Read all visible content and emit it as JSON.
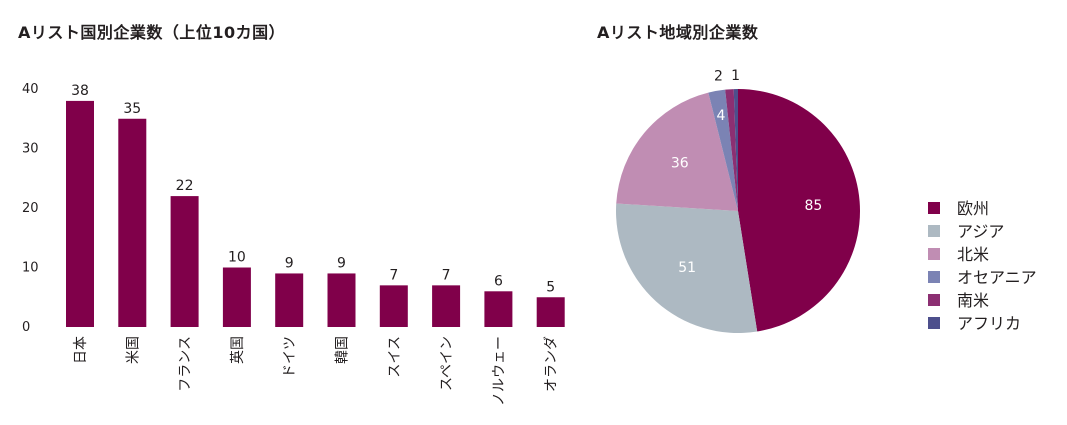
{
  "chart_data": [
    {
      "type": "bar",
      "title": "Aリスト国別企業数（上位10カ国）",
      "categories": [
        "日本",
        "米国",
        "フランス",
        "英国",
        "ドイツ",
        "韓国",
        "スイス",
        "スペイン",
        "ノルウェー",
        "オランダ"
      ],
      "values": [
        38,
        35,
        22,
        10,
        9,
        9,
        7,
        7,
        6,
        5
      ],
      "ylim": [
        0,
        40
      ],
      "yticks": [
        0,
        10,
        20,
        30,
        40
      ],
      "grid": false,
      "colors": {
        "bar": "#80004a"
      }
    },
    {
      "type": "pie",
      "title": "Aリスト地域別企業数",
      "labels": [
        "欧州",
        "アジア",
        "北米",
        "オセアニア",
        "南米",
        "アフリカ"
      ],
      "values": [
        85,
        51,
        36,
        4,
        2,
        1
      ],
      "legend": "right",
      "colors": [
        "#80004a",
        "#adb9c2",
        "#c08db3",
        "#7b83b4",
        "#8c2f72",
        "#4d4f8c"
      ]
    }
  ]
}
